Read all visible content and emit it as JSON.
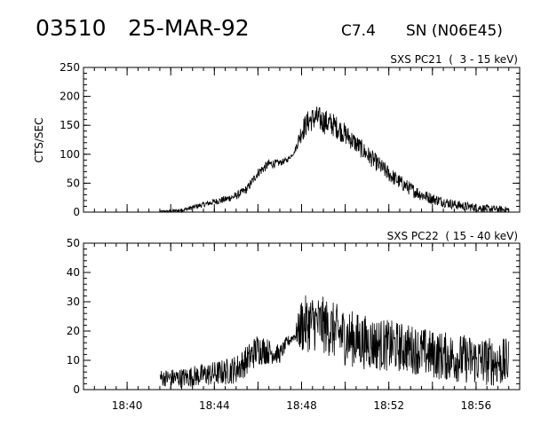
{
  "header": {
    "event_id": "03510",
    "date": "25-MAR-92",
    "flare_class": "C7.4",
    "location": "SN (N06E45)"
  },
  "chart_data": [
    {
      "type": "line",
      "title": "SXS PC21  (  3 - 15 keV)",
      "ylabel": "CTS/SEC",
      "xlim": [
        "18:38",
        "18:58"
      ],
      "ylim": [
        0,
        250
      ],
      "yticks": [
        0,
        50,
        100,
        150,
        200,
        250
      ],
      "xticks": [
        "18:40",
        "18:44",
        "18:48",
        "18:52",
        "18:56"
      ],
      "x_unit": "time (UT, HH:MM)",
      "series": [
        {
          "points": [
            [
              "18:41:30",
              1
            ],
            [
              "18:42:00",
              2
            ],
            [
              "18:42:30",
              3
            ],
            [
              "18:43:00",
              8
            ],
            [
              "18:43:30",
              13
            ],
            [
              "18:44:00",
              18
            ],
            [
              "18:44:30",
              22
            ],
            [
              "18:45:00",
              28
            ],
            [
              "18:45:30",
              40
            ],
            [
              "18:46:00",
              68
            ],
            [
              "18:46:30",
              83
            ],
            [
              "18:47:00",
              85
            ],
            [
              "18:47:20",
              90
            ],
            [
              "18:47:40",
              103
            ],
            [
              "18:48:00",
              140
            ],
            [
              "18:48:20",
              158
            ],
            [
              "18:48:40",
              163
            ],
            [
              "18:49:00",
              157
            ],
            [
              "18:49:30",
              150
            ],
            [
              "18:50:00",
              135
            ],
            [
              "18:50:30",
              118
            ],
            [
              "18:51:00",
              100
            ],
            [
              "18:51:30",
              83
            ],
            [
              "18:52:00",
              66
            ],
            [
              "18:52:30",
              52
            ],
            [
              "18:53:00",
              40
            ],
            [
              "18:53:30",
              30
            ],
            [
              "18:54:00",
              23
            ],
            [
              "18:54:30",
              18
            ],
            [
              "18:55:00",
              13
            ],
            [
              "18:55:30",
              10
            ],
            [
              "18:56:00",
              8
            ],
            [
              "18:56:30",
              6
            ],
            [
              "18:57:00",
              5
            ],
            [
              "18:57:30",
              4
            ]
          ],
          "noise_amplitude": [
            [
              "18:41:30",
              1
            ],
            [
              "18:43:00",
              3
            ],
            [
              "18:45:00",
              5
            ],
            [
              "18:46:30",
              6
            ],
            [
              "18:47:40",
              2
            ],
            [
              "18:48:00",
              14
            ],
            [
              "18:49:00",
              16
            ],
            [
              "18:50:30",
              12
            ],
            [
              "18:52:00",
              10
            ],
            [
              "18:54:00",
              7
            ],
            [
              "18:57:30",
              4
            ]
          ]
        }
      ]
    },
    {
      "type": "line",
      "title": "SXS PC22  ( 15 - 40 keV)",
      "ylabel": "",
      "xlim": [
        "18:38",
        "18:58"
      ],
      "ylim": [
        0,
        50
      ],
      "yticks": [
        0,
        10,
        20,
        30,
        40,
        50
      ],
      "xticks": [
        "18:40",
        "18:44",
        "18:48",
        "18:52",
        "18:56"
      ],
      "x_unit": "time (UT, HH:MM)",
      "series": [
        {
          "points": [
            [
              "18:41:30",
              4
            ],
            [
              "18:42:30",
              4
            ],
            [
              "18:43:30",
              5
            ],
            [
              "18:44:30",
              6
            ],
            [
              "18:45:00",
              7
            ],
            [
              "18:45:30",
              10
            ],
            [
              "18:46:00",
              14
            ],
            [
              "18:46:30",
              13
            ],
            [
              "18:47:00",
              12
            ],
            [
              "18:47:20",
              16
            ],
            [
              "18:47:45",
              19
            ],
            [
              "18:48:00",
              22
            ],
            [
              "18:48:30",
              23
            ],
            [
              "18:49:00",
              22
            ],
            [
              "18:50:00",
              18
            ],
            [
              "18:51:00",
              16
            ],
            [
              "18:52:00",
              15
            ],
            [
              "18:53:00",
              14
            ],
            [
              "18:54:00",
              12
            ],
            [
              "18:55:00",
              11
            ],
            [
              "18:56:00",
              10
            ],
            [
              "18:57:30",
              9
            ]
          ],
          "noise_amplitude": [
            [
              "18:41:30",
              2
            ],
            [
              "18:44:00",
              3
            ],
            [
              "18:46:00",
              4
            ],
            [
              "18:47:40",
              1
            ],
            [
              "18:48:00",
              7
            ],
            [
              "18:50:00",
              7
            ],
            [
              "18:53:00",
              6
            ],
            [
              "18:57:30",
              6
            ]
          ]
        }
      ]
    }
  ]
}
